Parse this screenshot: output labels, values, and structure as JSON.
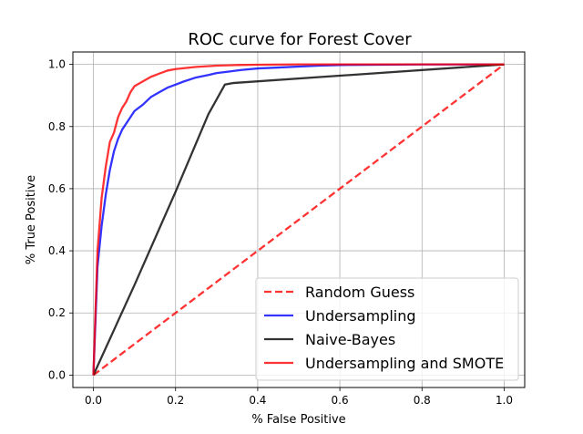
{
  "chart_data": {
    "type": "line",
    "title": "ROC curve for Forest Cover",
    "xlabel": "% False Positive",
    "ylabel": "% True Positive",
    "xlim": [
      -0.05,
      1.05
    ],
    "ylim": [
      -0.04,
      1.04
    ],
    "grid": true,
    "legend_position": "lower-right",
    "x_ticks": [
      "0.0",
      "0.2",
      "0.4",
      "0.6",
      "0.8",
      "1.0"
    ],
    "y_ticks": [
      "0.0",
      "0.2",
      "0.4",
      "0.6",
      "0.8",
      "1.0"
    ],
    "series": [
      {
        "name": "Random Guess",
        "color": "#ff0000",
        "style": "dashed",
        "x": [
          0.0,
          1.0
        ],
        "y": [
          0.0,
          1.0
        ]
      },
      {
        "name": "Undersampling",
        "color": "#0000ff",
        "style": "solid",
        "x": [
          0.0,
          0.01,
          0.02,
          0.03,
          0.04,
          0.05,
          0.06,
          0.07,
          0.08,
          0.1,
          0.12,
          0.14,
          0.16,
          0.18,
          0.2,
          0.22,
          0.25,
          0.28,
          0.3,
          0.33,
          0.36,
          0.4,
          0.45,
          0.5,
          0.55,
          0.6,
          0.7,
          0.8,
          0.9,
          1.0
        ],
        "y": [
          0.0,
          0.35,
          0.48,
          0.58,
          0.66,
          0.72,
          0.76,
          0.79,
          0.81,
          0.85,
          0.87,
          0.895,
          0.91,
          0.925,
          0.935,
          0.945,
          0.958,
          0.966,
          0.972,
          0.977,
          0.982,
          0.987,
          0.99,
          0.993,
          0.996,
          0.998,
          0.999,
          1.0,
          1.0,
          1.0
        ]
      },
      {
        "name": "Naive-Bayes",
        "color": "#000000",
        "style": "solid",
        "x": [
          0.0,
          0.1,
          0.2,
          0.28,
          0.32,
          0.34,
          1.0
        ],
        "y": [
          0.0,
          0.29,
          0.59,
          0.84,
          0.935,
          0.94,
          1.0
        ]
      },
      {
        "name": "Undersampling and SMOTE",
        "color": "#ff0000",
        "style": "solid",
        "x": [
          0.0,
          0.01,
          0.02,
          0.03,
          0.04,
          0.05,
          0.06,
          0.07,
          0.08,
          0.09,
          0.1,
          0.12,
          0.14,
          0.16,
          0.18,
          0.2,
          0.25,
          0.3,
          0.35,
          0.4,
          0.5,
          0.6,
          0.8,
          1.0
        ],
        "y": [
          0.0,
          0.4,
          0.57,
          0.67,
          0.75,
          0.78,
          0.83,
          0.86,
          0.88,
          0.91,
          0.93,
          0.945,
          0.96,
          0.97,
          0.98,
          0.985,
          0.992,
          0.996,
          0.998,
          0.999,
          1.0,
          1.0,
          1.0,
          1.0
        ]
      }
    ]
  }
}
